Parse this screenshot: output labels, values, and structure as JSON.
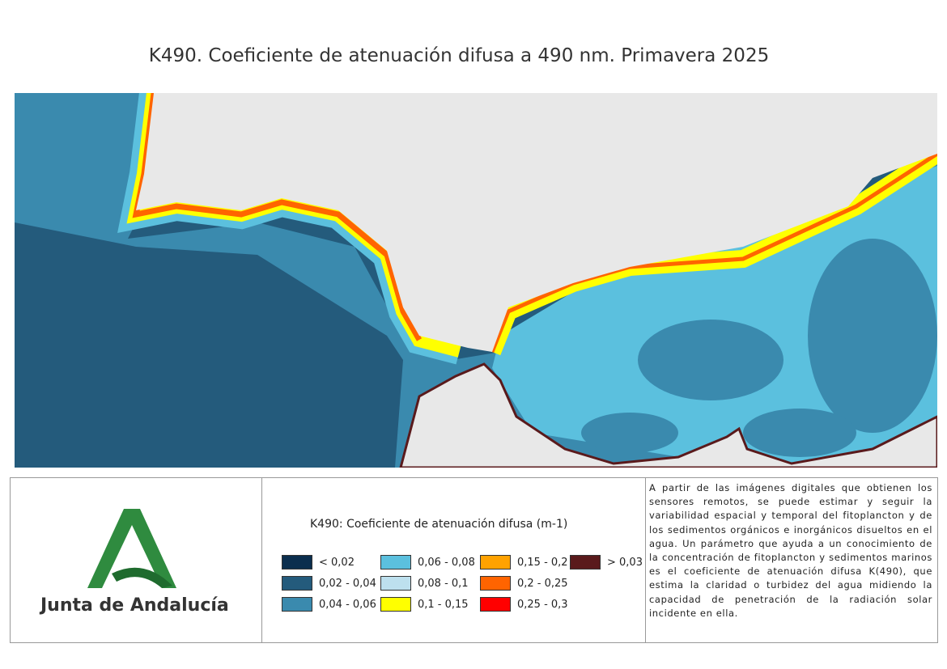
{
  "title": "K490. Coeficiente de atenuación difusa a 490 nm. Primavera 2025",
  "legend": {
    "title": "K490: Coeficiente de atenuación difusa (m-1)",
    "items": [
      {
        "label": "< 0,02",
        "color": "#0b2e4e"
      },
      {
        "label": "0,02 - 0,04",
        "color": "#245b7c"
      },
      {
        "label": "0,04 - 0,06",
        "color": "#3a8aae"
      },
      {
        "label": "0,06 - 0,08",
        "color": "#5bc0de"
      },
      {
        "label": "0,08 - 0,1",
        "color": "#bde0ee"
      },
      {
        "label": "0,1 - 0,15",
        "color": "#ffff00"
      },
      {
        "label": "0,15 - 0,2",
        "color": "#ffa200"
      },
      {
        "label": "0,2 - 0,25",
        "color": "#ff6400"
      },
      {
        "label": "0,25 - 0,3",
        "color": "#ff0000"
      },
      {
        "label": "> 0,03",
        "color": "#5a1a1c"
      }
    ]
  },
  "description": "A partir de las imágenes digitales que obtienen los sensores remotos, se puede estimar y seguir la variabilidad espacial y temporal del fitoplancton y de los sedimentos orgánicos e inorgánicos disueltos en el agua. Un parámetro que ayuda a un conocimiento de la concentración de fitoplancton y sedimentos marinos es el coeficiente de atenuación difusa K(490), que estima la claridad o turbidez del agua midiendo la capacidad de penetración de la radiación solar incidente en ella.",
  "logo": {
    "text": "Junta de Andalucía"
  }
}
